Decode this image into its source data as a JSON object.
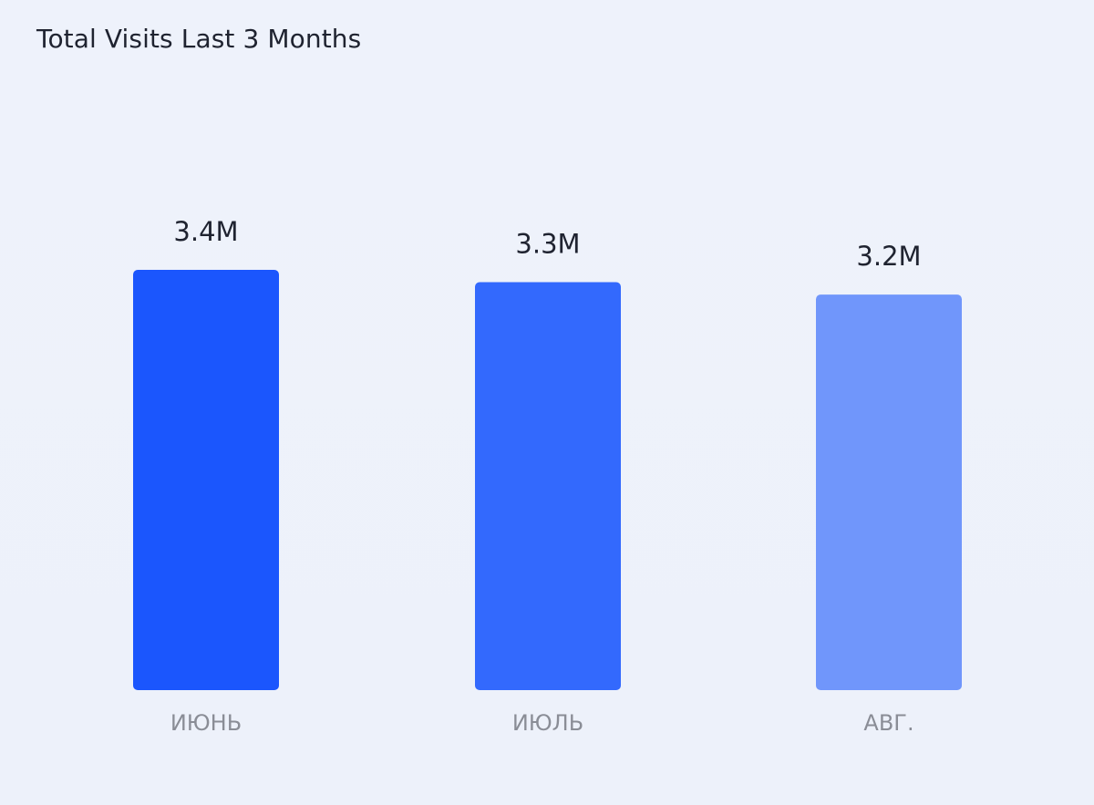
{
  "widget": {
    "title": "Total Visits Last 3 Months"
  },
  "chart_data": {
    "type": "bar",
    "title": "Total Visits Last 3 Months",
    "categories": [
      "ИЮНЬ",
      "ИЮЛЬ",
      "АВГ."
    ],
    "values": [
      3.4,
      3.3,
      3.2
    ],
    "value_labels": [
      "3.4M",
      "3.3M",
      "3.2M"
    ],
    "unit": "M",
    "colors": [
      "#1b56fd",
      "#3369fd",
      "#7096fb"
    ],
    "ylim": [
      0,
      3.4
    ],
    "grid": false,
    "legend": "none"
  }
}
